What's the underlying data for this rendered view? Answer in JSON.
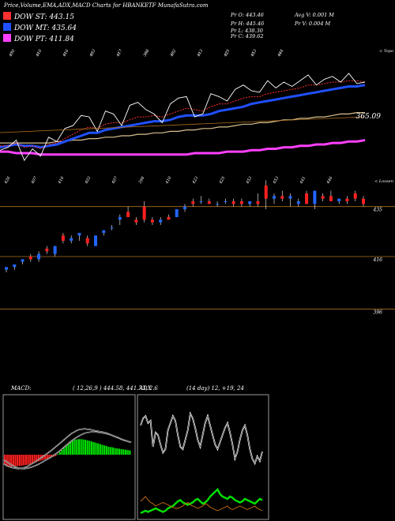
{
  "header": {
    "title": "Price,Volume,EMA,ADX,MACD Charts for HBANKETF MunafaSutra.com",
    "dow_st": "DOW ST: 443.15",
    "dow_mt": "DOW MT: 435.64",
    "dow_pt": "DOW PT: 411.84",
    "pr_o": "Pr  O: 443.46",
    "pr_h": "Pr  H: 445.46",
    "pr_l": "Pr  L: 438.30",
    "pr_c": "Pr  C: 439.62",
    "avg_v": "Avg V: 0.001 M",
    "pr_v": "Pr  V: 0.004  M"
  },
  "colors": {
    "dow_st": "#ff3030",
    "dow_mt": "#2050ff",
    "dow_pt": "#ff40ff",
    "up": "#2266ff",
    "down": "#ff2020",
    "price_line": "#b07020"
  },
  "chart_data": [
    {
      "type": "line",
      "name": "price-ema-panel",
      "corner_label": "< Topo",
      "last_value_label": "365.09",
      "top_labels": [
        "430",
        "410",
        "416",
        "403",
        "417",
        "398",
        "402",
        "413",
        "425",
        "453",
        "444"
      ],
      "series": [
        {
          "key": "close",
          "color": "#ffffff",
          "values": [
            393,
            395,
            400,
            386,
            394,
            389,
            402,
            399,
            408,
            410,
            417,
            416,
            406,
            420,
            418,
            410,
            424,
            426,
            421,
            418,
            412,
            425,
            429,
            430,
            416,
            418,
            432,
            430,
            427,
            435,
            438,
            434,
            433,
            441,
            436,
            440,
            437,
            441,
            445,
            438,
            442,
            444,
            440,
            446,
            439,
            440
          ]
        },
        {
          "key": "ema_short",
          "color": "#ff3030",
          "values": [
            396,
            396,
            398,
            395,
            396,
            394,
            397,
            398,
            401,
            404,
            407,
            409,
            408,
            411,
            412,
            412,
            414,
            416,
            416,
            417,
            416,
            418,
            420,
            422,
            421,
            420,
            423,
            425,
            425,
            427,
            429,
            430,
            430,
            432,
            433,
            434,
            435,
            436,
            438,
            438,
            439,
            440,
            440,
            441,
            441,
            440
          ]
        },
        {
          "key": "ema_mid",
          "color": "#2050ff",
          "values": [
            395,
            396,
            397,
            396,
            396,
            395,
            396,
            397,
            399,
            401,
            403,
            405,
            405,
            407,
            408,
            409,
            410,
            411,
            412,
            413,
            413,
            414,
            416,
            417,
            417,
            417,
            418,
            420,
            421,
            422,
            423,
            425,
            426,
            427,
            428,
            429,
            430,
            431,
            432,
            433,
            434,
            435,
            436,
            437,
            437,
            438
          ]
        },
        {
          "key": "ema_long",
          "color": "#d8c090",
          "values": [
            398,
            398,
            398,
            398,
            398,
            398,
            398,
            399,
            399,
            400,
            400,
            401,
            401,
            402,
            402,
            403,
            403,
            404,
            404,
            405,
            405,
            406,
            406,
            407,
            407,
            408,
            408,
            409,
            409,
            410,
            411,
            411,
            412,
            412,
            413,
            414,
            414,
            415,
            415,
            416,
            416,
            417,
            418,
            418,
            419,
            419
          ]
        },
        {
          "key": "ema_200",
          "color": "#ff40ff",
          "values": [
            392,
            392,
            391,
            391,
            391,
            390,
            390,
            390,
            390,
            390,
            390,
            390,
            390,
            390,
            390,
            390,
            390,
            390,
            390,
            390,
            390,
            390,
            390,
            390,
            391,
            391,
            391,
            391,
            392,
            392,
            392,
            393,
            393,
            394,
            394,
            395,
            395,
            396,
            396,
            397,
            397,
            398,
            398,
            399,
            399,
            400
          ]
        }
      ]
    },
    {
      "type": "candlestick",
      "name": "candle-panel",
      "corner_label": "< Loosen",
      "top_labels": [
        "426",
        "407",
        "416",
        "403",
        "407",
        "394",
        "410",
        "423",
        "425",
        "453",
        "453",
        "441",
        "446"
      ],
      "right_labels": [
        "435",
        "416",
        "396"
      ],
      "hlines": [
        435,
        416,
        396
      ],
      "candles": [
        {
          "o": 411,
          "h": 412,
          "l": 410,
          "c": 412
        },
        {
          "o": 412,
          "h": 413,
          "l": 411,
          "c": 413
        },
        {
          "o": 414,
          "h": 415,
          "l": 413,
          "c": 415
        },
        {
          "o": 416,
          "h": 417,
          "l": 414,
          "c": 415
        },
        {
          "o": 415,
          "h": 418,
          "l": 414,
          "c": 417
        },
        {
          "o": 419,
          "h": 420,
          "l": 417,
          "c": 418
        },
        {
          "o": 417,
          "h": 420,
          "l": 416,
          "c": 420
        },
        {
          "o": 424,
          "h": 425,
          "l": 421,
          "c": 422
        },
        {
          "o": 422,
          "h": 424,
          "l": 421,
          "c": 423
        },
        {
          "o": 424,
          "h": 425,
          "l": 422,
          "c": 425
        },
        {
          "o": 423,
          "h": 424,
          "l": 420,
          "c": 421
        },
        {
          "o": 420,
          "h": 424,
          "l": 420,
          "c": 424
        },
        {
          "o": 425,
          "h": 426,
          "l": 424,
          "c": 426
        },
        {
          "o": 427,
          "h": 428,
          "l": 426,
          "c": 427
        },
        {
          "o": 430,
          "h": 432,
          "l": 428,
          "c": 431
        },
        {
          "o": 433,
          "h": 435,
          "l": 431,
          "c": 431
        },
        {
          "o": 430,
          "h": 431,
          "l": 428,
          "c": 429
        },
        {
          "o": 435,
          "h": 437,
          "l": 429,
          "c": 430
        },
        {
          "o": 430,
          "h": 431,
          "l": 428,
          "c": 429
        },
        {
          "o": 429,
          "h": 431,
          "l": 428,
          "c": 430
        },
        {
          "o": 431,
          "h": 432,
          "l": 430,
          "c": 430
        },
        {
          "o": 431,
          "h": 434,
          "l": 431,
          "c": 434
        },
        {
          "o": 434,
          "h": 436,
          "l": 433,
          "c": 435
        },
        {
          "o": 437,
          "h": 438,
          "l": 435,
          "c": 436
        },
        {
          "o": 437,
          "h": 439,
          "l": 436,
          "c": 437
        },
        {
          "o": 437,
          "h": 438,
          "l": 436,
          "c": 436
        },
        {
          "o": 436,
          "h": 437,
          "l": 435,
          "c": 436
        },
        {
          "o": 437,
          "h": 438,
          "l": 436,
          "c": 437
        },
        {
          "o": 437,
          "h": 438,
          "l": 435,
          "c": 436
        },
        {
          "o": 437,
          "h": 438,
          "l": 435,
          "c": 436
        },
        {
          "o": 436,
          "h": 437,
          "l": 435,
          "c": 437
        },
        {
          "o": 437,
          "h": 440,
          "l": 435,
          "c": 436
        },
        {
          "o": 443,
          "h": 445,
          "l": 434,
          "c": 438
        },
        {
          "o": 438,
          "h": 440,
          "l": 436,
          "c": 439
        },
        {
          "o": 439,
          "h": 441,
          "l": 437,
          "c": 438
        },
        {
          "o": 438,
          "h": 440,
          "l": 435,
          "c": 439
        },
        {
          "o": 436,
          "h": 438,
          "l": 435,
          "c": 437
        },
        {
          "o": 440,
          "h": 441,
          "l": 436,
          "c": 436
        },
        {
          "o": 436,
          "h": 441,
          "l": 434,
          "c": 441
        },
        {
          "o": 439,
          "h": 440,
          "l": 437,
          "c": 438
        },
        {
          "o": 439,
          "h": 441,
          "l": 437,
          "c": 437
        },
        {
          "o": 437,
          "h": 438,
          "l": 436,
          "c": 438
        },
        {
          "o": 438,
          "h": 439,
          "l": 436,
          "c": 437
        },
        {
          "o": 440,
          "h": 441,
          "l": 437,
          "c": 438
        },
        {
          "o": 438,
          "h": 439,
          "l": 435,
          "c": 436
        }
      ]
    },
    {
      "type": "bar",
      "name": "macd-panel",
      "label_left": "MACD:",
      "label_params": "( 12,26,9 ) 444.58,  441.73,  2.6",
      "histogram": [
        -3,
        -3.4,
        -3.5,
        -3.6,
        -3.6,
        -3.5,
        -3.4,
        -3.4,
        -3.3,
        -3.2,
        -3.1,
        -3.0,
        -2.8,
        -2.6,
        -2.4,
        -2.2,
        -2.0,
        -1.8,
        -1.6,
        -1.4,
        -1.2,
        -1.0,
        -0.8,
        -0.6,
        -0.4,
        0.2,
        0.8,
        1.4,
        2.0,
        2.6,
        3.2,
        3.8,
        4.2,
        4.5,
        4.6,
        4.7,
        4.7,
        4.6,
        4.5,
        4.3,
        4.2,
        4.0,
        3.8,
        3.6,
        3.4,
        3.2,
        3.0,
        2.8,
        2.6,
        2.4,
        2.3,
        2.2,
        2.0,
        1.9,
        1.8,
        1.7,
        1.6,
        1.5,
        1.4,
        1.3
      ],
      "macd": [
        -2.5,
        -3.0,
        -3.3,
        -3.5,
        -3.7,
        -3.8,
        -3.8,
        -3.7,
        -3.5,
        -3.2,
        -2.8,
        -2.4,
        -2.0,
        -1.5,
        -1.0,
        -0.5,
        0.0,
        0.5,
        1.0,
        1.6,
        2.2,
        2.8,
        3.4,
        4.0,
        4.6,
        5.2,
        5.8,
        6.2,
        6.6,
        6.9,
        7.0,
        7.1,
        7.0,
        6.9,
        6.8,
        6.6,
        6.5,
        6.3,
        6.2,
        6.0,
        5.8,
        5.5,
        5.2,
        4.9,
        4.6,
        4.3,
        4.0,
        3.8,
        3.6,
        3.4
      ],
      "signal": [
        -1.0,
        -1.5,
        -2.0,
        -2.4,
        -2.8,
        -3.1,
        -3.3,
        -3.4,
        -3.4,
        -3.3,
        -3.1,
        -2.9,
        -2.6,
        -2.3,
        -1.9,
        -1.5,
        -1.1,
        -0.7,
        -0.3,
        0.2,
        0.7,
        1.2,
        1.8,
        2.4,
        3.0,
        3.6,
        4.2,
        4.7,
        5.2,
        5.6,
        6.0,
        6.3,
        6.5,
        6.6,
        6.7,
        6.7,
        6.6,
        6.5,
        6.4,
        6.3,
        6.1,
        5.9,
        5.7,
        5.4,
        5.1,
        4.8,
        4.5,
        4.3,
        4.0,
        3.8
      ]
    },
    {
      "type": "line",
      "name": "adx-panel",
      "label_left": "ADX",
      "label_params": "(14  day) 12,  +19,  24",
      "series": [
        {
          "key": "adx",
          "color": "#ffffff",
          "values": [
            78,
            84,
            86,
            80,
            82,
            60,
            72,
            70,
            62,
            55,
            58,
            74,
            80,
            86,
            82,
            70,
            60,
            58,
            66,
            74,
            88,
            84,
            76,
            66,
            60,
            70,
            80,
            86,
            78,
            70,
            62,
            58,
            64,
            70,
            76,
            80,
            72,
            62,
            50,
            56,
            66,
            74,
            78,
            70,
            58,
            50,
            46,
            52,
            48,
            56
          ]
        },
        {
          "key": "plus_di",
          "color": "#00e000",
          "values": [
            4,
            5,
            6,
            5,
            6,
            7,
            8,
            7,
            6,
            5,
            6,
            8,
            9,
            10,
            12,
            14,
            15,
            13,
            12,
            11,
            12,
            13,
            15,
            16,
            14,
            12,
            13,
            15,
            18,
            20,
            22,
            24,
            20,
            18,
            17,
            16,
            18,
            17,
            15,
            14,
            13,
            14,
            16,
            15,
            14,
            13,
            12,
            14,
            16,
            15
          ]
        },
        {
          "key": "minus_di",
          "color": "#d07010",
          "values": [
            14,
            16,
            18,
            15,
            13,
            12,
            10,
            11,
            12,
            13,
            12,
            11,
            10,
            9,
            8,
            8,
            9,
            10,
            12,
            13,
            11,
            10,
            9,
            8,
            9,
            10,
            12,
            11,
            9,
            8,
            7,
            6,
            7,
            8,
            9,
            10,
            8,
            7,
            8,
            9,
            10,
            9,
            8,
            7,
            8,
            9,
            10,
            8,
            7,
            6
          ]
        }
      ]
    }
  ]
}
